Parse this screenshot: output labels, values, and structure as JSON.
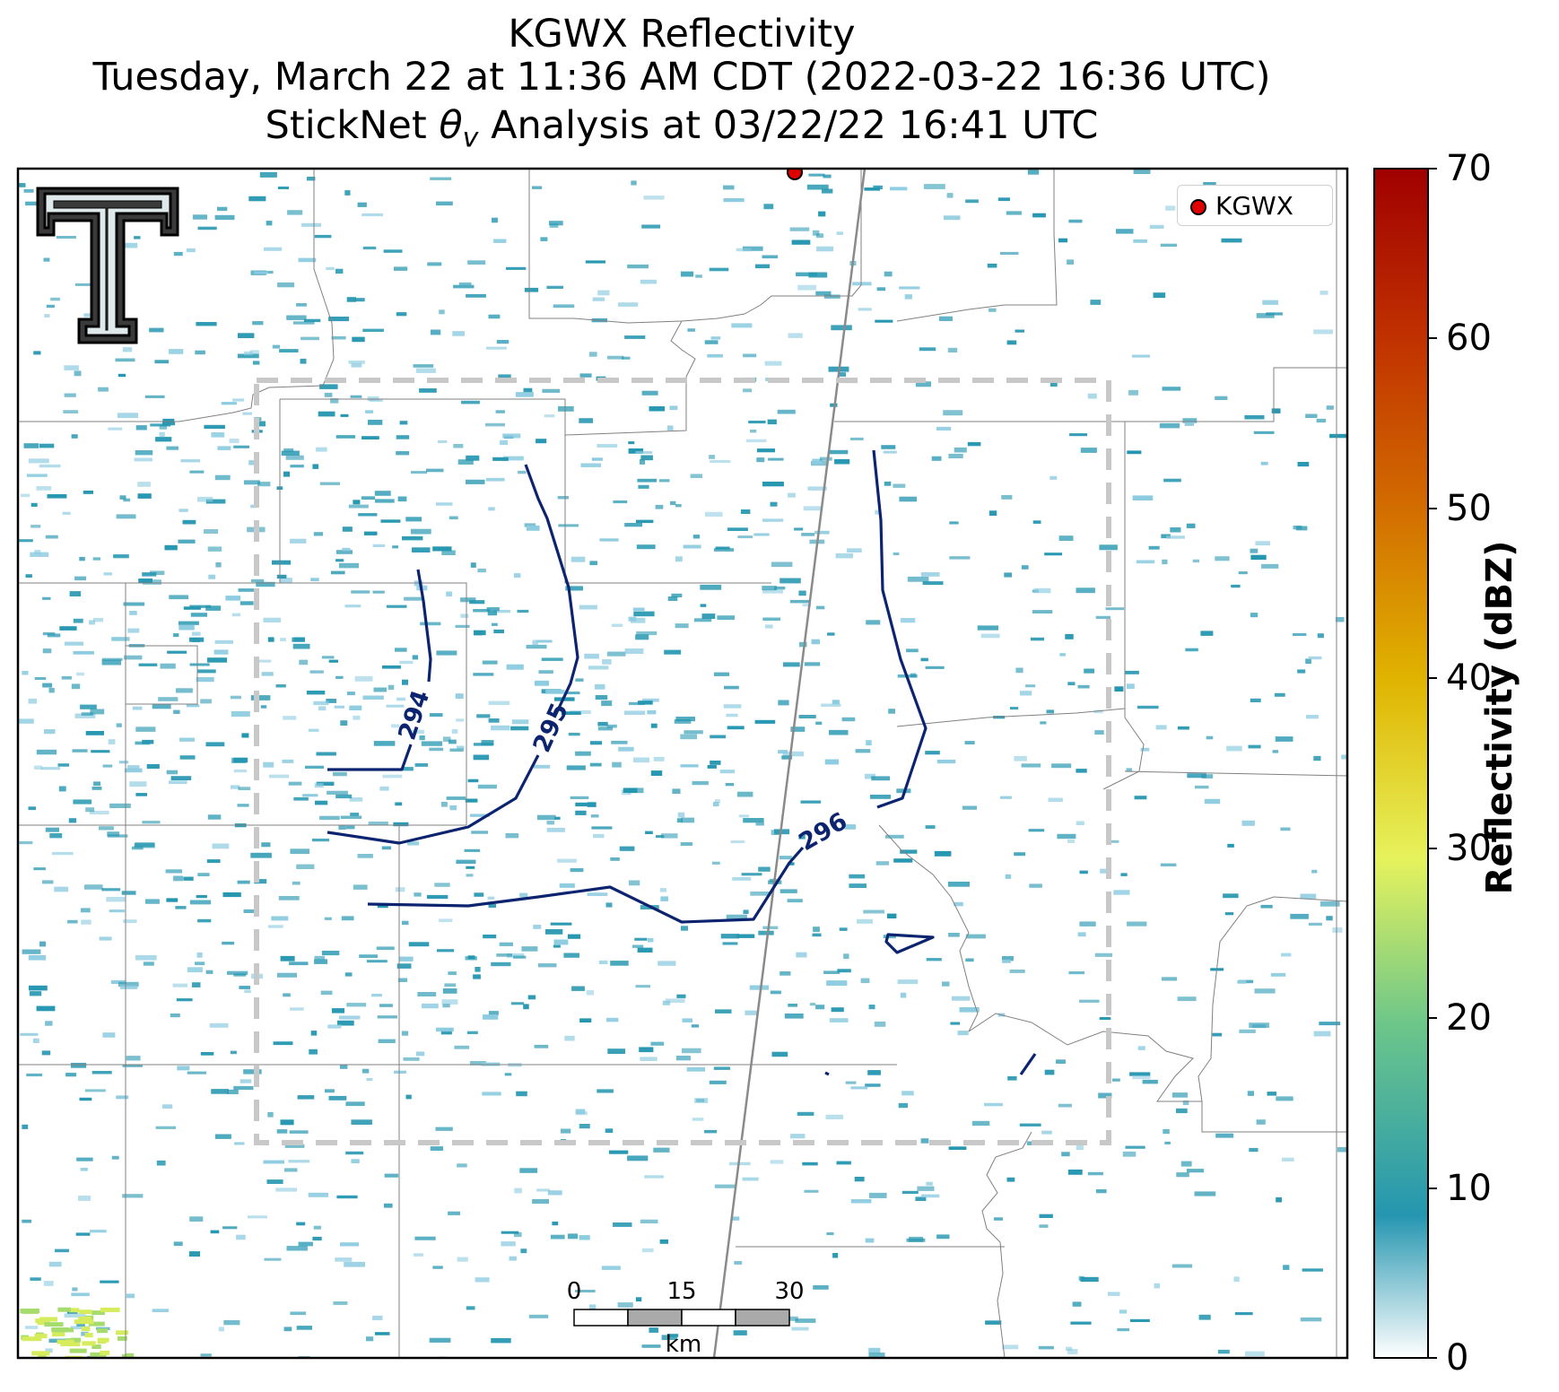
{
  "title": {
    "line1": "KGWX Reflectivity",
    "line2": "Tuesday, March 22 at 11:36 AM CDT (2022-03-22 16:36 UTC)",
    "line3_prefix": "StickNet ",
    "line3_theta": "θ",
    "line3_sub": "v",
    "line3_suffix": " Analysis at 03/22/22 16:41 UTC"
  },
  "legend": {
    "label": "KGWX",
    "marker_color": "#e00000"
  },
  "colorbar": {
    "label": "Reflectivity (dBZ)",
    "ticks": [
      "70",
      "60",
      "50",
      "40",
      "30",
      "20",
      "10",
      "0"
    ],
    "colors": [
      "#ffffff",
      "#2596b0",
      "#6cc68a",
      "#e6f25c",
      "#e0b400",
      "#d26a00",
      "#c03000",
      "#a00000"
    ]
  },
  "contours": {
    "color": "#0c2470",
    "labels": [
      "294",
      "295",
      "296"
    ]
  },
  "scalebar": {
    "ticks": [
      "0",
      "15",
      "30"
    ],
    "unit": "km"
  },
  "colors": {
    "echo": "#2596b0",
    "echo_light": "#8ccbe0",
    "boundary": "#777777",
    "box": "#c8c8c8"
  }
}
